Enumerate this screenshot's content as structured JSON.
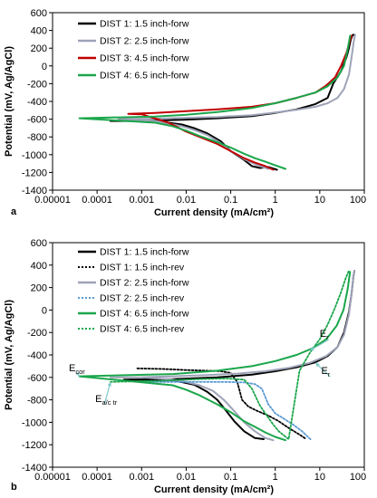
{
  "chart_data": [
    {
      "panel": "a",
      "type": "line",
      "xlabel": "Current density (mA/cm²)",
      "ylabel": "Potential (mV, Ag/AgCl)",
      "xscale": "log",
      "xlim": [
        1e-05,
        100
      ],
      "ylim": [
        -1400,
        600
      ],
      "x_ticks": [
        "0.00001",
        "0.0001",
        "0.001",
        "0.01",
        "0.1",
        "1",
        "10",
        "100"
      ],
      "y_ticks": [
        "600",
        "400",
        "200",
        "0",
        "-200",
        "-400",
        "-600",
        "-800",
        "-1000",
        "-1200",
        "-1400"
      ],
      "grid": false,
      "legend": "top-left",
      "series": [
        {
          "name": "DIST 1: 1.5 inch-forw",
          "color": "#000000",
          "dash": "solid",
          "x": [
            1.1,
            0.7,
            0.45,
            0.3,
            0.2,
            0.1,
            0.06,
            0.03,
            0.015,
            0.008,
            0.002,
            0.0002,
            0.002,
            0.01,
            0.05,
            0.3,
            1,
            3,
            8,
            15,
            20,
            30,
            40,
            45,
            50,
            55,
            60
          ],
          "y": [
            -1170,
            -1140,
            -1150,
            -1130,
            -1060,
            -960,
            -850,
            -760,
            -700,
            -660,
            -620,
            -620,
            -615,
            -605,
            -590,
            -565,
            -530,
            -490,
            -430,
            -360,
            -200,
            -60,
            100,
            200,
            300,
            350,
            350
          ]
        },
        {
          "name": "DIST 2: 2.5 inch-forw",
          "color": "#9ea3b8",
          "dash": "solid",
          "x": [
            0.7,
            0.4,
            0.2,
            0.1,
            0.06,
            0.03,
            0.015,
            0.008,
            0.004,
            0.002,
            0.0003,
            0.002,
            0.01,
            0.05,
            0.3,
            1,
            3,
            8,
            15,
            25,
            35,
            45,
            52,
            58,
            62
          ],
          "y": [
            -1160,
            -1120,
            -1050,
            -960,
            -870,
            -780,
            -720,
            -680,
            -650,
            -620,
            -600,
            -595,
            -585,
            -575,
            -555,
            -525,
            -495,
            -460,
            -420,
            -360,
            -260,
            -100,
            100,
            280,
            350
          ]
        },
        {
          "name": "DIST 3: 4.5 inch-forw",
          "color": "#c00000",
          "dash": "solid",
          "x": [
            0.9,
            0.6,
            0.35,
            0.2,
            0.1,
            0.05,
            0.02,
            0.01,
            0.004,
            0.001,
            0.0005,
            0.002,
            0.01,
            0.05,
            0.3,
            1,
            3,
            8,
            14,
            22,
            30,
            40,
            48,
            52
          ],
          "y": [
            -1170,
            -1130,
            -1090,
            -1040,
            -960,
            -880,
            -800,
            -740,
            -640,
            -545,
            -540,
            -530,
            -510,
            -490,
            -460,
            -420,
            -360,
            -300,
            -220,
            -130,
            0,
            150,
            290,
            340
          ]
        },
        {
          "name": "DIST 4: 6.5 inch-forw",
          "color": "#1aa64b",
          "dash": "solid",
          "x": [
            1.7,
            1,
            0.6,
            0.35,
            0.2,
            0.1,
            0.05,
            0.02,
            0.01,
            0.005,
            0.002,
            4e-05,
            0.002,
            0.01,
            0.05,
            0.3,
            1,
            3,
            8,
            15,
            25,
            35,
            42,
            48
          ],
          "y": [
            -1160,
            -1120,
            -1080,
            -1040,
            -990,
            -920,
            -860,
            -790,
            -730,
            -680,
            -640,
            -590,
            -570,
            -550,
            -520,
            -475,
            -420,
            -360,
            -300,
            -230,
            -130,
            0,
            180,
            340
          ]
        }
      ]
    },
    {
      "panel": "b",
      "type": "line",
      "xlabel": "Current density (mA/cm²)",
      "ylabel": "Potential (mV, Ag/AgCl)",
      "xscale": "log",
      "xlim": [
        1e-05,
        100
      ],
      "ylim": [
        -1400,
        600
      ],
      "x_ticks": [
        "0.00001",
        "0.0001",
        "0.001",
        "0.01",
        "0.1",
        "1",
        "10",
        "100"
      ],
      "y_ticks": [
        "600",
        "400",
        "200",
        "0",
        "-200",
        "-400",
        "-600",
        "-800",
        "-1000",
        "-1200",
        "-1400"
      ],
      "grid": false,
      "legend": "top-left",
      "annotations": [
        {
          "text": "E",
          "sub": "cor",
          "x": 2.8e-05,
          "y": -545,
          "arrow_to": [
            4e-05,
            -590
          ]
        },
        {
          "text": "E",
          "sub": "a/c tr",
          "x": 0.00011,
          "y": -820,
          "arrow_to": [
            0.0002,
            -640
          ]
        },
        {
          "text": "E",
          "sub": "r",
          "x": 12,
          "y": -240,
          "arrow_to": [
            6,
            -360
          ]
        },
        {
          "text": "E",
          "sub": "r",
          "x": 13,
          "y": -570,
          "arrow_to": [
            8,
            -470
          ]
        }
      ],
      "series": [
        {
          "name": "DIST 1: 1.5 inch-forw",
          "color": "#000000",
          "dash": "solid",
          "x": [
            0.55,
            0.35,
            0.2,
            0.12,
            0.08,
            0.05,
            0.03,
            0.02,
            0.015,
            0.01,
            0.005,
            0.0004,
            0.005,
            0.05,
            0.3,
            1,
            3,
            8,
            15,
            25,
            35,
            45,
            52,
            57,
            60
          ],
          "y": [
            -1150,
            -1140,
            -1080,
            -990,
            -900,
            -800,
            -730,
            -690,
            -665,
            -650,
            -625,
            -620,
            -615,
            -600,
            -575,
            -545,
            -510,
            -465,
            -410,
            -330,
            -200,
            -20,
            150,
            300,
            350
          ]
        },
        {
          "name": "DIST 1: 1.5 inch-rev",
          "color": "#000000",
          "dash": "2,2",
          "x": [
            0.0008,
            0.003,
            0.01,
            0.03,
            0.06,
            0.1,
            0.14,
            0.18,
            0.25,
            0.4,
            0.7,
            1.2,
            2,
            3.5,
            5
          ],
          "y": [
            -520,
            -525,
            -535,
            -540,
            -545,
            -560,
            -640,
            -800,
            -860,
            -900,
            -940,
            -990,
            -1050,
            -1110,
            -1150
          ]
        },
        {
          "name": "DIST 2: 2.5 inch-forw",
          "color": "#9ea3b8",
          "dash": "solid",
          "x": [
            0.9,
            0.6,
            0.35,
            0.2,
            0.12,
            0.07,
            0.04,
            0.02,
            0.01,
            0.005,
            0.001,
            0.0002,
            0.001,
            0.005,
            0.03,
            0.15,
            0.6,
            2,
            6,
            14,
            25,
            35,
            45,
            52,
            57,
            60
          ],
          "y": [
            -1160,
            -1140,
            -1080,
            -1000,
            -900,
            -800,
            -720,
            -670,
            -640,
            -620,
            -600,
            -600,
            -598,
            -590,
            -580,
            -565,
            -545,
            -515,
            -470,
            -410,
            -330,
            -220,
            -40,
            150,
            300,
            350
          ]
        },
        {
          "name": "DIST 2: 2.5 inch-rev",
          "color": "#5b9bd5",
          "dash": "2,2",
          "x": [
            0.001,
            0.01,
            0.08,
            0.2,
            0.35,
            0.5,
            0.7,
            1,
            1.6,
            2.5,
            4,
            6.5
          ],
          "y": [
            -640,
            -640,
            -640,
            -645,
            -660,
            -700,
            -840,
            -920,
            -970,
            -1020,
            -1080,
            -1160
          ]
        },
        {
          "name": "DIST 4: 6.5 inch-forw",
          "color": "#1aa64b",
          "dash": "solid",
          "x": [
            1.7,
            1,
            0.6,
            0.35,
            0.2,
            0.1,
            0.05,
            0.02,
            0.01,
            0.005,
            4e-05,
            0.005,
            0.05,
            0.3,
            1,
            3,
            7,
            14,
            24,
            34,
            42,
            48
          ],
          "y": [
            -1160,
            -1130,
            -1090,
            -1040,
            -990,
            -910,
            -840,
            -760,
            -710,
            -670,
            -590,
            -570,
            -540,
            -500,
            -455,
            -400,
            -340,
            -260,
            -140,
            0,
            180,
            340
          ]
        },
        {
          "name": "DIST 4: 6.5 inch-rev",
          "color": "#1aa64b",
          "dash": "2,2",
          "x": [
            0.0002,
            0.003,
            0.02,
            0.08,
            0.2,
            0.3,
            0.45,
            0.7,
            0.9,
            1.2,
            2,
            3.5,
            6,
            10,
            15,
            22,
            30,
            38,
            45
          ],
          "y": [
            -640,
            -630,
            -615,
            -610,
            -620,
            -700,
            -850,
            -960,
            -1020,
            -1080,
            -1150,
            -540,
            -380,
            -260,
            -130,
            20,
            160,
            280,
            350
          ]
        }
      ]
    }
  ]
}
